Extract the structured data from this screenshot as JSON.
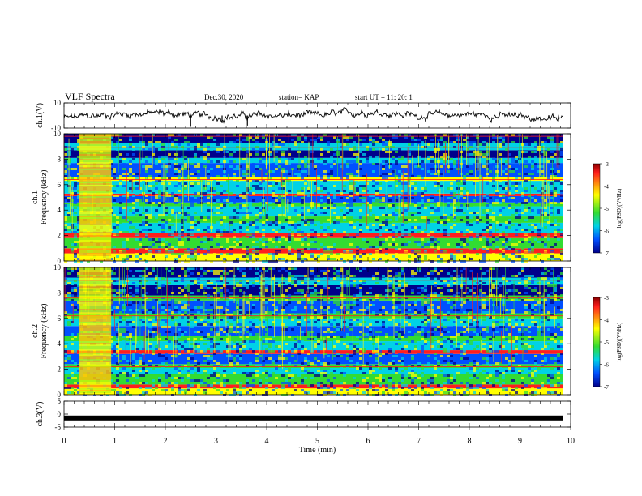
{
  "header": {
    "title": "VLF Spectra",
    "date": "Dec.30, 2020",
    "station": "station= KAP",
    "start": "start  UT  =   11: 20: 1"
  },
  "colors": {
    "dark_blue": "#00008b",
    "blue": "#0050ff",
    "cyan": "#00d2e6",
    "green": "#32dc32",
    "yellow": "#ffff00",
    "red": "#ff1e1e",
    "dark_red": "#8b0000"
  },
  "chart_data": [
    {
      "type": "line",
      "panel": "ch1-waveform",
      "ylabel": "ch.1(V)",
      "ylim": [
        -10,
        10
      ],
      "yticks": [
        10,
        -10
      ],
      "xlim": [
        0,
        10
      ],
      "x_extent_min": 9.85,
      "note": "noisy trace wandering around 0 V",
      "approx_values_at_minutes": {
        "x": [
          0,
          1,
          2,
          3,
          4,
          5,
          6,
          7,
          8,
          9,
          9.8
        ],
        "y": [
          -2,
          1,
          2,
          -1,
          0,
          0,
          3,
          0,
          1,
          -1,
          -3
        ]
      }
    },
    {
      "type": "heatmap",
      "panel": "ch1-spectrogram",
      "ylabel": "ch.1\nFrequency (kHz)",
      "ylim": [
        0,
        10
      ],
      "yticks": [
        0,
        2,
        4,
        6,
        8,
        10
      ],
      "xlim": [
        0,
        10
      ],
      "x_extent_min": 9.85,
      "colorbar": {
        "label": "log(PSD)(V²/Hz)",
        "range": [
          -7,
          -3
        ],
        "ticks": [
          -3,
          -4,
          -5,
          -6,
          -7
        ]
      }
    },
    {
      "type": "heatmap",
      "panel": "ch2-spectrogram",
      "ylabel": "ch.2\nFrequency (kHz)",
      "ylim": [
        0,
        10
      ],
      "yticks": [
        0,
        2,
        4,
        6,
        8,
        10
      ],
      "xlim": [
        0,
        10
      ],
      "x_extent_min": 9.85,
      "colorbar": {
        "label": "log(PSD)(V²/Hz)",
        "range": [
          -7,
          -3
        ],
        "ticks": [
          -3,
          -4,
          -5,
          -6,
          -7
        ]
      }
    },
    {
      "type": "line",
      "panel": "ch3-waveform",
      "ylabel": "ch.3(V)",
      "ylim": [
        -5,
        5
      ],
      "yticks": [
        5,
        0,
        -5
      ],
      "xlim": [
        0,
        10
      ],
      "x_extent_min": 9.85,
      "constant_value": -1.5,
      "xlabel": "Time  (min)",
      "xticks": [
        0,
        1,
        2,
        3,
        4,
        5,
        6,
        7,
        8,
        9,
        10
      ]
    }
  ]
}
